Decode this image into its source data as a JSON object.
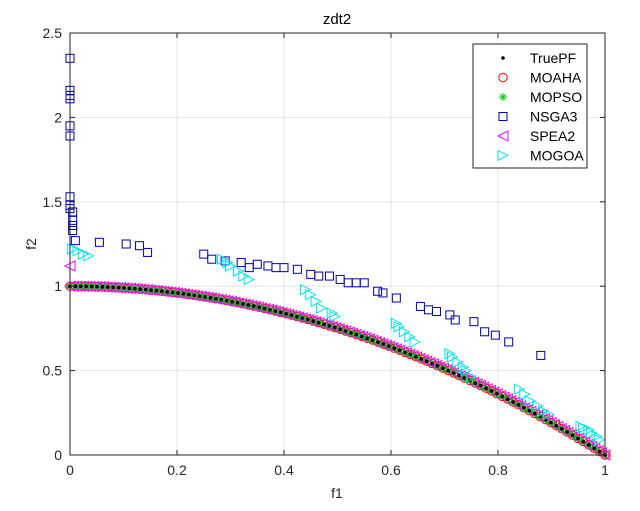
{
  "chart_data": {
    "type": "scatter",
    "title": "zdt2",
    "xlabel": "f1",
    "ylabel": "f2",
    "xlim": [
      0,
      1
    ],
    "ylim": [
      0,
      2.5
    ],
    "xticks": [
      "0",
      "0.2",
      "0.4",
      "0.6",
      "0.8",
      "1"
    ],
    "yticks": [
      "0",
      "0.5",
      "1",
      "1.5",
      "2",
      "2.5"
    ],
    "grid": true,
    "legend_position": "top-right",
    "series": [
      {
        "name": "TruePF",
        "marker": "dot",
        "color": "#000000",
        "curve": "f2 = 1 - f1^2",
        "n_points": 100
      },
      {
        "name": "MOAHA",
        "marker": "circle",
        "color": "#ff0000",
        "curve": "f2 = 1 - f1^2",
        "n_points": 100
      },
      {
        "name": "MOPSO",
        "marker": "asterisk",
        "color": "#00cc00",
        "curve": "f2 = 1 - f1^2",
        "n_points": 100
      },
      {
        "name": "NSGA3",
        "marker": "square",
        "color": "#0000aa",
        "points": [
          [
            0.0,
            2.35
          ],
          [
            0.0,
            2.16
          ],
          [
            0.0,
            2.13
          ],
          [
            0.0,
            2.11
          ],
          [
            0.0,
            1.95
          ],
          [
            0.0,
            1.89
          ],
          [
            0.0,
            1.53
          ],
          [
            0.0,
            1.48
          ],
          [
            0.0,
            1.46
          ],
          [
            0.005,
            1.44
          ],
          [
            0.005,
            1.39
          ],
          [
            0.005,
            1.36
          ],
          [
            0.005,
            1.33
          ],
          [
            0.01,
            1.27
          ],
          [
            0.055,
            1.26
          ],
          [
            0.105,
            1.25
          ],
          [
            0.13,
            1.24
          ],
          [
            0.145,
            1.2
          ],
          [
            0.25,
            1.19
          ],
          [
            0.265,
            1.16
          ],
          [
            0.29,
            1.15
          ],
          [
            0.32,
            1.14
          ],
          [
            0.335,
            1.11
          ],
          [
            0.35,
            1.13
          ],
          [
            0.37,
            1.12
          ],
          [
            0.385,
            1.11
          ],
          [
            0.4,
            1.11
          ],
          [
            0.425,
            1.1
          ],
          [
            0.45,
            1.07
          ],
          [
            0.465,
            1.06
          ],
          [
            0.485,
            1.06
          ],
          [
            0.505,
            1.04
          ],
          [
            0.52,
            1.02
          ],
          [
            0.535,
            1.02
          ],
          [
            0.55,
            1.02
          ],
          [
            0.575,
            0.97
          ],
          [
            0.585,
            0.96
          ],
          [
            0.61,
            0.93
          ],
          [
            0.655,
            0.88
          ],
          [
            0.67,
            0.86
          ],
          [
            0.685,
            0.85
          ],
          [
            0.71,
            0.83
          ],
          [
            0.72,
            0.8
          ],
          [
            0.755,
            0.79
          ],
          [
            0.775,
            0.73
          ],
          [
            0.795,
            0.71
          ],
          [
            0.82,
            0.67
          ],
          [
            0.88,
            0.59
          ]
        ]
      },
      {
        "name": "SPEA2",
        "marker": "triangle-left",
        "color": "#ff00ff",
        "curve": "f2 = 1 - f1^2",
        "n_points": 160,
        "points": [
          [
            0.0,
            1.12
          ]
        ]
      },
      {
        "name": "MOGOA",
        "marker": "triangle-right",
        "color": "#00e5ee",
        "points": [
          [
            0.005,
            1.22
          ],
          [
            0.015,
            1.21
          ],
          [
            0.025,
            1.19
          ],
          [
            0.035,
            1.18
          ],
          [
            0.285,
            1.16
          ],
          [
            0.295,
            1.14
          ],
          [
            0.3,
            1.12
          ],
          [
            0.315,
            1.09
          ],
          [
            0.325,
            1.06
          ],
          [
            0.335,
            1.04
          ],
          [
            0.44,
            0.98
          ],
          [
            0.45,
            0.95
          ],
          [
            0.46,
            0.91
          ],
          [
            0.47,
            0.87
          ],
          [
            0.49,
            0.84
          ],
          [
            0.495,
            0.82
          ],
          [
            0.61,
            0.78
          ],
          [
            0.615,
            0.76
          ],
          [
            0.625,
            0.73
          ],
          [
            0.635,
            0.7
          ],
          [
            0.645,
            0.67
          ],
          [
            0.71,
            0.6
          ],
          [
            0.715,
            0.58
          ],
          [
            0.725,
            0.55
          ],
          [
            0.735,
            0.52
          ],
          [
            0.74,
            0.5
          ],
          [
            0.75,
            0.46
          ],
          [
            0.84,
            0.39
          ],
          [
            0.85,
            0.36
          ],
          [
            0.86,
            0.32
          ],
          [
            0.875,
            0.29
          ],
          [
            0.885,
            0.26
          ],
          [
            0.895,
            0.24
          ],
          [
            0.955,
            0.17
          ],
          [
            0.96,
            0.16
          ],
          [
            0.97,
            0.15
          ],
          [
            0.975,
            0.13
          ],
          [
            0.985,
            0.11
          ],
          [
            0.99,
            0.09
          ]
        ]
      }
    ]
  }
}
